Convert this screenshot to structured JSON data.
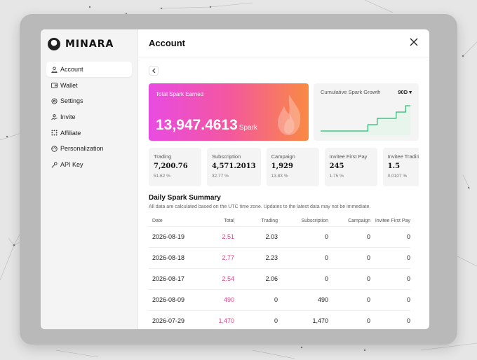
{
  "brand": {
    "name": "MINARA"
  },
  "sidebar": {
    "items": [
      {
        "label": "Account",
        "icon": "user-icon",
        "active": true
      },
      {
        "label": "Wallet",
        "icon": "wallet-icon"
      },
      {
        "label": "Settings",
        "icon": "gear-icon"
      },
      {
        "label": "Invite",
        "icon": "invite-icon"
      },
      {
        "label": "Affiliate",
        "icon": "affiliate-icon"
      },
      {
        "label": "Personalization",
        "icon": "palette-icon"
      },
      {
        "label": "API Key",
        "icon": "key-icon"
      }
    ]
  },
  "header": {
    "title": "Account",
    "close_icon": "close-icon"
  },
  "earned": {
    "label": "Total Spark Earned",
    "value": "13,947.4613",
    "unit": "Spark",
    "gradient": [
      "#e94be3",
      "#f98a43"
    ]
  },
  "growth": {
    "label": "Cumulative Spark Growth",
    "range": "90D",
    "line_color": "#2bb673",
    "chart_data": {
      "type": "line",
      "series": [
        {
          "values": [
            0,
            0,
            0,
            0,
            0,
            0,
            0,
            0,
            0,
            0,
            1,
            1,
            2,
            2,
            2,
            2,
            3,
            3,
            4,
            4
          ]
        }
      ]
    }
  },
  "stats": [
    {
      "label": "Trading",
      "value": "7,200.76",
      "pct": "51.62 %"
    },
    {
      "label": "Subscription",
      "value": "4,571.2013",
      "pct": "32.77 %"
    },
    {
      "label": "Campaign",
      "value": "1,929",
      "pct": "13.83 %"
    },
    {
      "label": "Invitee First Pay",
      "value": "245",
      "pct": "1.75 %"
    },
    {
      "label": "Invitee Trading",
      "value": "1.5",
      "pct": "0.0107 %"
    }
  ],
  "summary": {
    "title": "Daily Spark Summary",
    "note": "All data are calculated based on the UTC time zone. Updates to the latest data may not be immediate.",
    "columns": [
      "Date",
      "Total",
      "Trading",
      "Subscription",
      "Campaign",
      "Invitee First Pay"
    ],
    "rows": [
      [
        "2026-08-19",
        "2.51",
        "2.03",
        "0",
        "0",
        "0"
      ],
      [
        "2026-08-18",
        "2.77",
        "2.23",
        "0",
        "0",
        "0"
      ],
      [
        "2026-08-17",
        "2.54",
        "2.06",
        "0",
        "0",
        "0"
      ],
      [
        "2026-08-09",
        "490",
        "0",
        "490",
        "0",
        "0"
      ],
      [
        "2026-07-29",
        "1,470",
        "0",
        "1,470",
        "0",
        "0"
      ]
    ]
  }
}
